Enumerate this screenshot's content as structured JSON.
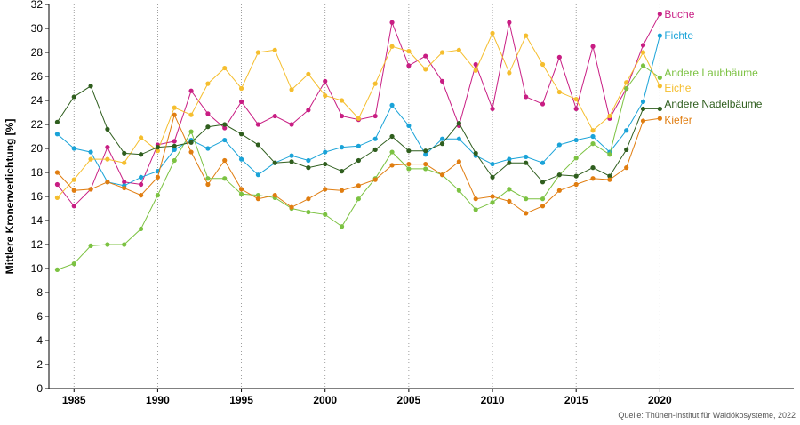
{
  "chart_data": {
    "type": "line",
    "ylabel": "Mittlere Kronenverlichtung [%]",
    "xlabel": "",
    "ylim": [
      0,
      32
    ],
    "xlim": [
      1983.5,
      2028
    ],
    "yticks": [
      0,
      2,
      4,
      6,
      8,
      10,
      12,
      14,
      16,
      18,
      20,
      22,
      24,
      26,
      28,
      30,
      32
    ],
    "xticks": [
      1985,
      1990,
      1995,
      2000,
      2005,
      2010,
      2015,
      2020
    ],
    "grid": "vertical dotted",
    "legend": "labels at line ends (right)",
    "source": "Quelle: Thünen-Institut für Waldökosysteme, 2022",
    "x": [
      1984,
      1985,
      1986,
      1987,
      1988,
      1989,
      1990,
      1991,
      1992,
      1993,
      1994,
      1995,
      1996,
      1997,
      1998,
      1999,
      2000,
      2001,
      2002,
      2003,
      2004,
      2005,
      2006,
      2007,
      2008,
      2009,
      2010,
      2011,
      2012,
      2013,
      2014,
      2015,
      2016,
      2017,
      2018,
      2019,
      2020
    ],
    "series": [
      {
        "name": "Buche",
        "color": "#c81d83",
        "values": [
          17.0,
          15.2,
          16.6,
          20.1,
          17.2,
          17.0,
          20.3,
          20.6,
          24.8,
          22.9,
          21.7,
          23.9,
          22.0,
          22.7,
          22.0,
          23.2,
          25.6,
          22.7,
          22.4,
          22.7,
          30.5,
          26.9,
          27.7,
          25.6,
          21.9,
          27.0,
          23.3,
          30.5,
          24.3,
          23.7,
          27.6,
          23.3,
          28.5,
          22.5,
          25.0,
          28.6,
          31.2
        ]
      },
      {
        "name": "Fichte",
        "color": "#1aa3d8",
        "values": [
          21.2,
          20.0,
          19.7,
          17.2,
          16.9,
          17.6,
          18.1,
          19.9,
          20.7,
          20.0,
          20.7,
          19.1,
          17.8,
          18.8,
          19.4,
          19.0,
          19.7,
          20.1,
          20.2,
          20.8,
          23.6,
          21.9,
          19.5,
          20.8,
          20.8,
          19.4,
          18.7,
          19.1,
          19.3,
          18.8,
          20.3,
          20.7,
          21.0,
          19.7,
          21.5,
          23.9,
          29.4
        ]
      },
      {
        "name": "Andere Laubbäume",
        "color": "#7cc242",
        "values": [
          9.9,
          10.4,
          11.9,
          12.0,
          12.0,
          13.3,
          16.1,
          19.0,
          21.4,
          17.5,
          17.5,
          16.2,
          16.1,
          15.9,
          15.0,
          14.7,
          14.5,
          13.5,
          15.8,
          17.5,
          19.7,
          18.3,
          18.3,
          17.8,
          16.5,
          14.9,
          15.5,
          16.6,
          15.8,
          15.8,
          17.8,
          19.2,
          20.4,
          19.5,
          25.0,
          26.9,
          25.9
        ]
      },
      {
        "name": "Eiche",
        "color": "#f5be2e",
        "values": [
          15.9,
          17.4,
          19.1,
          19.1,
          18.8,
          20.9,
          19.8,
          23.4,
          22.8,
          25.4,
          26.7,
          25.0,
          28.0,
          28.2,
          24.9,
          26.2,
          24.4,
          24.0,
          22.5,
          25.4,
          28.5,
          28.1,
          26.6,
          28.0,
          28.2,
          26.5,
          29.6,
          26.3,
          29.4,
          27.0,
          24.7,
          24.1,
          21.5,
          22.7,
          25.5,
          28.0,
          25.2
        ]
      },
      {
        "name": "Andere Nadelbäume",
        "color": "#2f5e1e",
        "values": [
          22.2,
          24.3,
          25.2,
          21.6,
          19.6,
          19.5,
          20.1,
          20.2,
          20.5,
          21.8,
          22.0,
          21.2,
          20.3,
          18.8,
          18.9,
          18.4,
          18.7,
          18.1,
          19.0,
          19.9,
          21.0,
          19.8,
          19.8,
          20.4,
          22.1,
          19.6,
          17.6,
          18.8,
          18.8,
          17.2,
          17.8,
          17.7,
          18.4,
          17.7,
          19.9,
          23.3,
          23.3
        ]
      },
      {
        "name": "Kiefer",
        "color": "#e07d10",
        "values": [
          18.0,
          16.5,
          16.6,
          17.2,
          16.7,
          16.1,
          17.6,
          22.8,
          19.7,
          17.0,
          19.0,
          16.6,
          15.8,
          16.1,
          15.1,
          15.8,
          16.6,
          16.5,
          16.9,
          17.4,
          18.6,
          18.7,
          18.7,
          17.8,
          18.9,
          15.8,
          16.0,
          15.6,
          14.6,
          15.2,
          16.5,
          17.0,
          17.5,
          17.4,
          18.4,
          22.3,
          22.5
        ]
      }
    ]
  }
}
